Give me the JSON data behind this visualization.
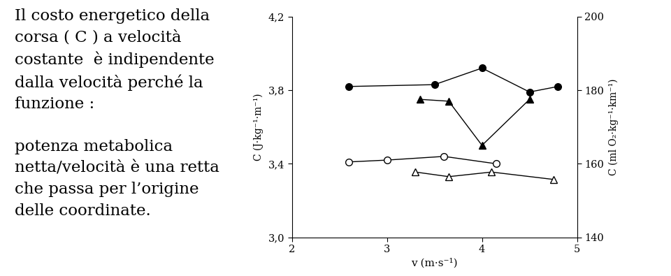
{
  "series": [
    {
      "x": [
        2.6,
        3.5,
        4.0,
        4.5,
        4.8
      ],
      "y": [
        3.82,
        3.83,
        3.92,
        3.79,
        3.82
      ],
      "marker": "o",
      "filled": true,
      "color": "black",
      "label": "filled_circle"
    },
    {
      "x": [
        3.35,
        3.65,
        4.0,
        4.5
      ],
      "y": [
        3.75,
        3.74,
        3.5,
        3.75
      ],
      "marker": "^",
      "filled": true,
      "color": "black",
      "label": "filled_triangle"
    },
    {
      "x": [
        2.6,
        3.0,
        3.6,
        4.15
      ],
      "y": [
        3.41,
        3.42,
        3.44,
        3.4
      ],
      "marker": "o",
      "filled": false,
      "color": "black",
      "label": "open_circle"
    },
    {
      "x": [
        3.3,
        3.65,
        4.1,
        4.75
      ],
      "y": [
        3.355,
        3.33,
        3.355,
        3.315
      ],
      "marker": "^",
      "filled": false,
      "color": "black",
      "label": "open_triangle"
    }
  ],
  "xlim": [
    2,
    5
  ],
  "ylim": [
    3.0,
    4.2
  ],
  "yticks": [
    3.0,
    3.4,
    3.8,
    4.2
  ],
  "ytick_labels": [
    "3,0",
    "3,4",
    "3,8",
    "4,2"
  ],
  "xticks": [
    2,
    3,
    4,
    5
  ],
  "ylabel_left": "C (J·kg⁻¹·m⁻¹)",
  "ylabel_right": "C (ml O₂·kg⁻¹·km⁻¹)",
  "xlabel": "v (m·s⁻¹)",
  "right_yticks": [
    140,
    160,
    180,
    200
  ],
  "right_ytick_labels": [
    "140",
    "160",
    "180",
    "200"
  ],
  "right_ylim": [
    140,
    200
  ],
  "background_color": "#ffffff",
  "markersize": 7,
  "linewidth": 1.0,
  "left_text": "Il costo energetico della\ncorsa ( C ) a velocità\ncostante  è indipendente\ndalla velocità perché la\nfunzione :\n\npotenza metabolica\nnetta/velocità è una retta\nche passa per l’origine\ndelle coordinate.",
  "text_fontsize": 16.5,
  "text_font": "serif"
}
